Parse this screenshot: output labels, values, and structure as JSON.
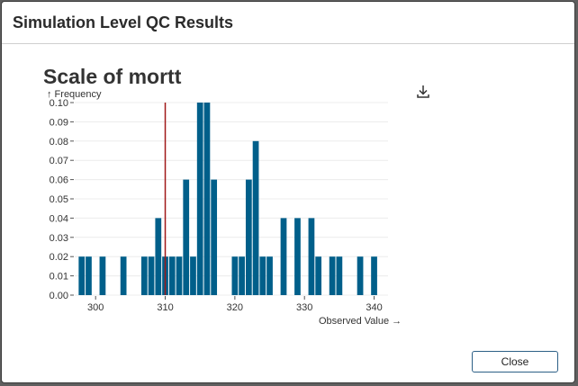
{
  "dialog": {
    "title": "Simulation Level QC Results",
    "close_label": "Close"
  },
  "download_icon": "download-icon",
  "colors": {
    "bar": "#005f8a",
    "reference_line": "#a01818",
    "grid": "#ececec"
  },
  "chart_data": {
    "type": "bar",
    "title": "Scale of mortt",
    "xlabel": "Observed Value →",
    "ylabel": "↑ Frequency",
    "xlim": [
      297,
      342
    ],
    "ylim": [
      0,
      0.1
    ],
    "x_ticks": [
      300,
      310,
      320,
      330,
      340
    ],
    "y_ticks": [
      0.0,
      0.01,
      0.02,
      0.03,
      0.04,
      0.05,
      0.06,
      0.07,
      0.08,
      0.09,
      0.1
    ],
    "y_tick_labels": [
      "0.00",
      "0.01",
      "0.02",
      "0.03",
      "0.04",
      "0.05",
      "0.06",
      "0.07",
      "0.08",
      "0.09",
      "0.10"
    ],
    "reference_line_x": 310,
    "bin_width": 1,
    "bins": [
      {
        "x": 298,
        "value": 0.02
      },
      {
        "x": 299,
        "value": 0.02
      },
      {
        "x": 301,
        "value": 0.02
      },
      {
        "x": 304,
        "value": 0.02
      },
      {
        "x": 307,
        "value": 0.02
      },
      {
        "x": 308,
        "value": 0.02
      },
      {
        "x": 309,
        "value": 0.04
      },
      {
        "x": 310,
        "value": 0.02
      },
      {
        "x": 311,
        "value": 0.02
      },
      {
        "x": 312,
        "value": 0.02
      },
      {
        "x": 313,
        "value": 0.06
      },
      {
        "x": 314,
        "value": 0.02
      },
      {
        "x": 315,
        "value": 0.1
      },
      {
        "x": 316,
        "value": 0.1
      },
      {
        "x": 317,
        "value": 0.06
      },
      {
        "x": 320,
        "value": 0.02
      },
      {
        "x": 321,
        "value": 0.02
      },
      {
        "x": 322,
        "value": 0.06
      },
      {
        "x": 323,
        "value": 0.08
      },
      {
        "x": 324,
        "value": 0.02
      },
      {
        "x": 325,
        "value": 0.02
      },
      {
        "x": 327,
        "value": 0.04
      },
      {
        "x": 329,
        "value": 0.04
      },
      {
        "x": 331,
        "value": 0.04
      },
      {
        "x": 332,
        "value": 0.02
      },
      {
        "x": 334,
        "value": 0.02
      },
      {
        "x": 335,
        "value": 0.02
      },
      {
        "x": 338,
        "value": 0.02
      },
      {
        "x": 340,
        "value": 0.02
      }
    ]
  }
}
